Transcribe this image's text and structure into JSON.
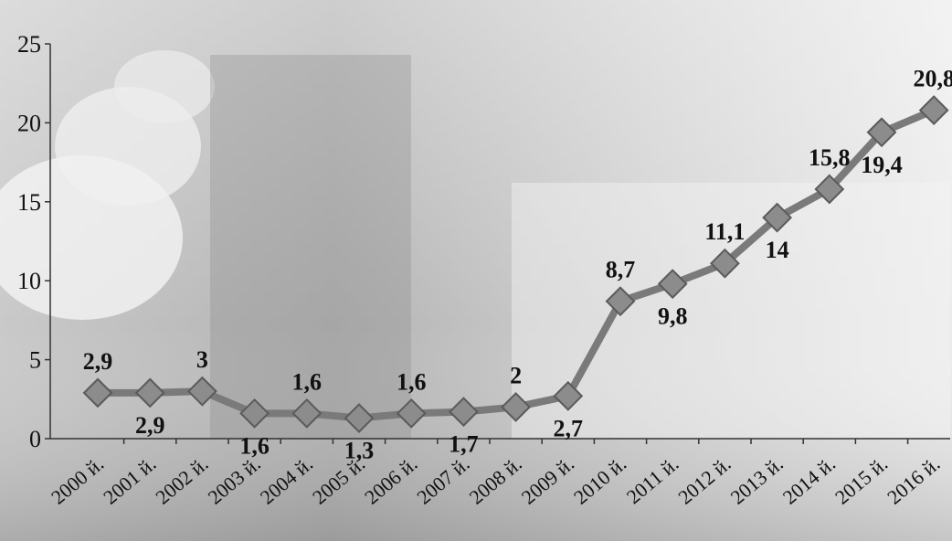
{
  "chart_data": {
    "type": "line",
    "title": "",
    "xlabel": "",
    "ylabel": "",
    "categories": [
      "2000 й.",
      "2001 й.",
      "2002 й.",
      "2003 й.",
      "2004 й.",
      "2005 й.",
      "2006 й.",
      "2007 й.",
      "2008 й.",
      "2009 й.",
      "2010 й.",
      "2011 й.",
      "2012 й.",
      "2013 й.",
      "2014 й.",
      "2015 й.",
      "2016 й."
    ],
    "values": [
      2.9,
      2.9,
      3,
      1.6,
      1.6,
      1.3,
      1.6,
      1.7,
      2,
      2.7,
      8.7,
      9.8,
      11.1,
      14,
      15.8,
      19.4,
      20.8
    ],
    "value_labels": [
      "2,9",
      "2,9",
      "3",
      "1,6",
      "1,6",
      "1,3",
      "1,6",
      "1,7",
      "2",
      "2,7",
      "8,7",
      "9,8",
      "11,1",
      "14",
      "15,8",
      "19,4",
      "20,8"
    ],
    "label_positions": [
      "above",
      "below",
      "above",
      "below",
      "above",
      "below",
      "above",
      "below",
      "above",
      "below",
      "above",
      "below",
      "above",
      "below",
      "above",
      "below",
      "above"
    ],
    "ylim": [
      0,
      25
    ],
    "yticks": [
      0,
      5,
      10,
      15,
      20,
      25
    ],
    "grid": false,
    "legend": "none",
    "marker": "diamond",
    "colors": {
      "line": "#7a7a7a",
      "marker_fill": "#8c8c8c",
      "marker_stroke": "#5a5a5a",
      "axis": "#333333",
      "background_light": "#f2f2f2",
      "background_dark": "#9a9a9a"
    }
  }
}
